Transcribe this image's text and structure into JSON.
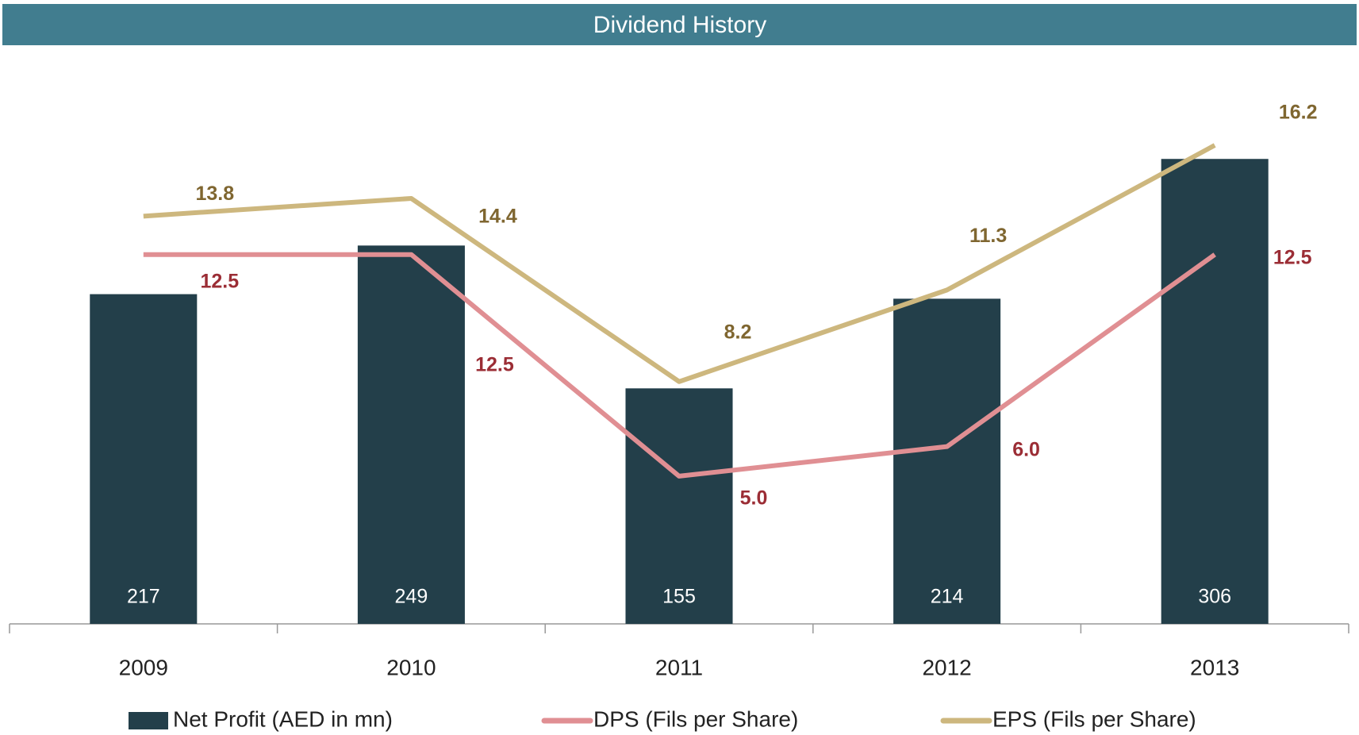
{
  "chart_data": {
    "type": "bar_line",
    "title": "Dividend History",
    "categories": [
      "2009",
      "2010",
      "2011",
      "2012",
      "2013"
    ],
    "ylim": [
      0,
      350
    ],
    "y2lim": [
      0,
      18
    ],
    "series": [
      {
        "name": "Net Profit (AED in mn)",
        "type": "bar",
        "color": "#233f4a",
        "values": [
          217,
          249,
          155,
          214,
          306
        ]
      },
      {
        "name": "DPS (Fils per Share)",
        "type": "line",
        "axis": "y2",
        "color": "#e08f93",
        "label_color": "#9b2d35",
        "values": [
          12.5,
          12.5,
          5.0,
          6.0,
          12.5
        ],
        "value_labels": [
          "12.5",
          "12.5",
          "5.0",
          "6.0",
          "12.5"
        ]
      },
      {
        "name": "EPS (Fils per Share)",
        "type": "line",
        "axis": "y2",
        "color": "#cdb77e",
        "label_color": "#7f6630",
        "values": [
          13.8,
          14.4,
          8.2,
          11.3,
          16.2
        ]
      }
    ]
  }
}
